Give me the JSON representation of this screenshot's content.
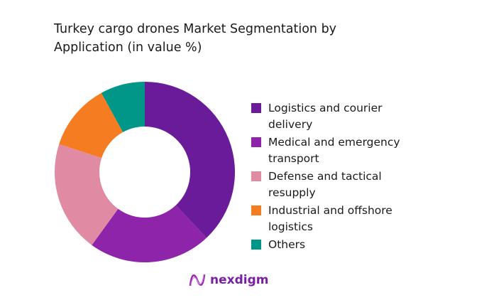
{
  "chart_data": {
    "type": "pie",
    "donut": true,
    "title": "Turkey cargo drones Market Segmentation by Application (in value %)",
    "categories": [
      "Logistics and courier delivery",
      "Medical and emergency transport",
      "Defense and tactical resupply",
      "Industrial and offshore logistics",
      "Others"
    ],
    "values": [
      38,
      22,
      20,
      12,
      8
    ],
    "colors": [
      "#6a1b9a",
      "#8e24aa",
      "#e08aa3",
      "#f57c20",
      "#009688"
    ],
    "legend_position": "right"
  },
  "brand": {
    "logo_text": "nexdigm"
  }
}
